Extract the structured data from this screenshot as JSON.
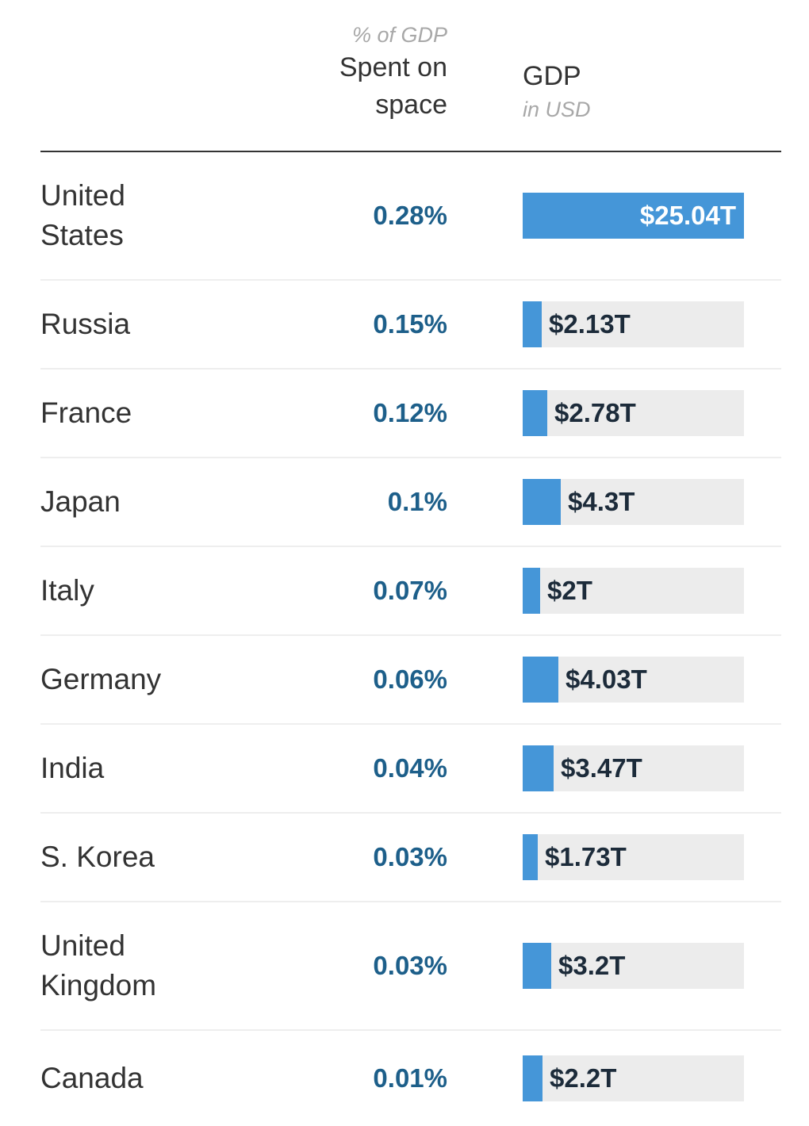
{
  "header": {
    "pct_sub": "% of GDP",
    "pct_main_line1": "Spent on",
    "pct_main_line2": "space",
    "gdp_main": "GDP",
    "gdp_sub": "in USD"
  },
  "colors": {
    "bar": "#4596d8",
    "track": "#ececec",
    "percent_text": "#1d5f8a"
  },
  "chart_data": {
    "type": "table",
    "columns": [
      "",
      "% of GDP Spent on space",
      "GDP in USD"
    ],
    "max_gdp_trillions": 25.04,
    "rows": [
      {
        "country_lines": [
          "United",
          "States"
        ],
        "pct": "0.28%",
        "gdp_label": "$25.04T",
        "gdp_trillions": 25.04
      },
      {
        "country_lines": [
          "Russia"
        ],
        "pct": "0.15%",
        "gdp_label": "$2.13T",
        "gdp_trillions": 2.13
      },
      {
        "country_lines": [
          "France"
        ],
        "pct": "0.12%",
        "gdp_label": "$2.78T",
        "gdp_trillions": 2.78
      },
      {
        "country_lines": [
          "Japan"
        ],
        "pct": "0.1%",
        "gdp_label": "$4.3T",
        "gdp_trillions": 4.3
      },
      {
        "country_lines": [
          "Italy"
        ],
        "pct": "0.07%",
        "gdp_label": "$2T",
        "gdp_trillions": 2.0
      },
      {
        "country_lines": [
          "Germany"
        ],
        "pct": "0.06%",
        "gdp_label": "$4.03T",
        "gdp_trillions": 4.03
      },
      {
        "country_lines": [
          "India"
        ],
        "pct": "0.04%",
        "gdp_label": "$3.47T",
        "gdp_trillions": 3.47
      },
      {
        "country_lines": [
          "S. Korea"
        ],
        "pct": "0.03%",
        "gdp_label": "$1.73T",
        "gdp_trillions": 1.73
      },
      {
        "country_lines": [
          "United",
          "Kingdom"
        ],
        "pct": "0.03%",
        "gdp_label": "$3.2T",
        "gdp_trillions": 3.2
      },
      {
        "country_lines": [
          "Canada"
        ],
        "pct": "0.01%",
        "gdp_label": "$2.2T",
        "gdp_trillions": 2.2
      }
    ]
  }
}
